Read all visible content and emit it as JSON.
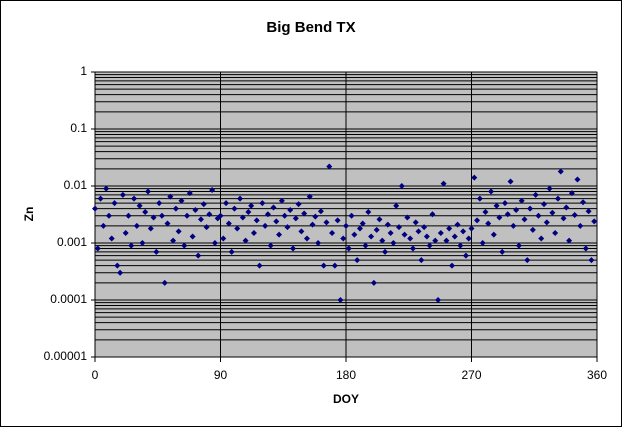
{
  "chart_data": {
    "type": "scatter",
    "title": "Big Bend TX",
    "x_label": "DOY",
    "y_label": "Zn",
    "color": "#000080",
    "log_y": true,
    "grid": true,
    "minor_grid": true,
    "plot_background": "#c0c0c0",
    "xlim": [
      0,
      360
    ],
    "xticks": [
      0,
      90,
      180,
      270,
      360
    ],
    "ylim": [
      1e-05,
      1
    ],
    "yticks": [
      1e-05,
      0.0001,
      0.001,
      0.01,
      0.1,
      1
    ],
    "x": [
      0,
      2,
      4,
      6,
      8,
      10,
      12,
      14,
      16,
      18,
      20,
      22,
      24,
      26,
      28,
      30,
      32,
      34,
      36,
      38,
      40,
      42,
      44,
      46,
      48,
      50,
      52,
      54,
      56,
      58,
      60,
      62,
      64,
      66,
      68,
      70,
      72,
      74,
      76,
      78,
      80,
      82,
      84,
      86,
      88,
      90,
      92,
      94,
      96,
      98,
      100,
      102,
      104,
      106,
      108,
      110,
      112,
      114,
      116,
      118,
      120,
      122,
      124,
      126,
      128,
      130,
      132,
      134,
      136,
      138,
      140,
      142,
      144,
      146,
      148,
      150,
      152,
      154,
      156,
      158,
      160,
      162,
      164,
      166,
      168,
      170,
      172,
      174,
      176,
      178,
      180,
      182,
      184,
      186,
      188,
      190,
      192,
      194,
      196,
      198,
      200,
      202,
      204,
      206,
      208,
      210,
      212,
      214,
      216,
      218,
      220,
      222,
      224,
      226,
      228,
      230,
      232,
      234,
      236,
      238,
      240,
      242,
      244,
      246,
      248,
      250,
      252,
      254,
      256,
      258,
      260,
      262,
      264,
      266,
      268,
      270,
      272,
      274,
      276,
      278,
      280,
      282,
      284,
      286,
      288,
      290,
      292,
      294,
      296,
      298,
      300,
      302,
      304,
      306,
      308,
      310,
      312,
      314,
      316,
      318,
      320,
      322,
      324,
      326,
      328,
      330,
      332,
      334,
      336,
      338,
      340,
      342,
      344,
      346,
      348,
      350,
      352,
      354,
      356,
      358
    ],
    "values": [
      0.004,
      0.0008,
      0.006,
      0.002,
      0.009,
      0.003,
      0.0012,
      0.005,
      0.0004,
      0.0003,
      0.007,
      0.0015,
      0.003,
      0.0009,
      0.006,
      0.002,
      0.0045,
      0.001,
      0.0035,
      0.008,
      0.0018,
      0.0028,
      0.0007,
      0.005,
      0.003,
      0.0002,
      0.0022,
      0.0065,
      0.0011,
      0.004,
      0.0016,
      0.0055,
      0.0009,
      0.003,
      0.0075,
      0.0013,
      0.0038,
      0.0006,
      0.0026,
      0.0048,
      0.0019,
      0.0032,
      0.0085,
      0.001,
      0.0027,
      0.003,
      0.0012,
      0.005,
      0.0022,
      0.0007,
      0.004,
      0.0018,
      0.006,
      0.0028,
      0.0011,
      0.0035,
      0.0045,
      0.0015,
      0.0025,
      0.0004,
      0.005,
      0.002,
      0.0032,
      0.0009,
      0.0042,
      0.0024,
      0.0014,
      0.0055,
      0.003,
      0.0019,
      0.0038,
      0.0008,
      0.0027,
      0.0048,
      0.0016,
      0.0033,
      0.0012,
      0.0065,
      0.0021,
      0.0029,
      0.001,
      0.0036,
      0.0004,
      0.0023,
      0.022,
      0.0015,
      0.0004,
      0.0025,
      0.0001,
      0.0012,
      0.002,
      0.0008,
      0.003,
      0.0014,
      0.0005,
      0.0018,
      0.0022,
      0.0009,
      0.0035,
      0.0013,
      0.0002,
      0.0017,
      0.0026,
      0.0011,
      0.0007,
      0.0021,
      0.0015,
      0.001,
      0.0045,
      0.0019,
      0.01,
      0.0014,
      0.0028,
      0.0012,
      0.0008,
      0.0023,
      0.0016,
      0.0005,
      0.0019,
      0.0013,
      0.0009,
      0.0032,
      0.0011,
      0.0001,
      0.0015,
      0.011,
      0.0011,
      0.0018,
      0.0004,
      0.0013,
      0.0021,
      0.0009,
      0.0016,
      0.0006,
      0.0012,
      0.0018,
      0.014,
      0.0025,
      0.006,
      0.001,
      0.0035,
      0.0022,
      0.008,
      0.0014,
      0.0045,
      0.0028,
      0.0007,
      0.005,
      0.0032,
      0.012,
      0.002,
      0.0038,
      0.0009,
      0.0055,
      0.0026,
      0.0005,
      0.004,
      0.0017,
      0.007,
      0.003,
      0.0012,
      0.0048,
      0.0023,
      0.009,
      0.0034,
      0.0015,
      0.006,
      0.018,
      0.0027,
      0.0042,
      0.0011,
      0.0075,
      0.0031,
      0.013,
      0.002,
      0.0052,
      0.0008,
      0.0036,
      0.0005,
      0.0024
    ]
  }
}
